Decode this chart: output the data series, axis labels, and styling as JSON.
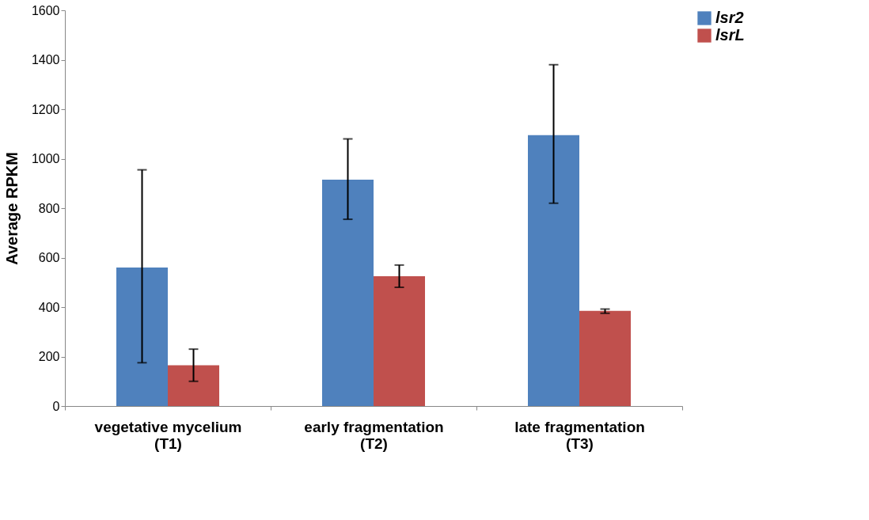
{
  "chart_data": {
    "type": "bar",
    "ylabel": "Average RPKM",
    "categories": [
      "vegetative mycelium (T1)",
      "early fragmentation (T2)",
      "late fragmentation (T3)"
    ],
    "series": [
      {
        "name": "lsr2",
        "color": "#4f81bd",
        "values": [
          560,
          915,
          1095
        ],
        "errors": [
          [
            175,
            955
          ],
          [
            755,
            1080
          ],
          [
            820,
            1380
          ]
        ]
      },
      {
        "name": "lsrL",
        "color": "#c0504d",
        "values": [
          165,
          525,
          385
        ],
        "errors": [
          [
            100,
            230
          ],
          [
            480,
            570
          ],
          [
            375,
            392
          ]
        ]
      }
    ],
    "ylim": [
      0,
      1600
    ],
    "yticks": [
      0,
      200,
      400,
      600,
      800,
      1000,
      1200,
      1400,
      1600
    ],
    "grid": false,
    "legend": "right"
  }
}
